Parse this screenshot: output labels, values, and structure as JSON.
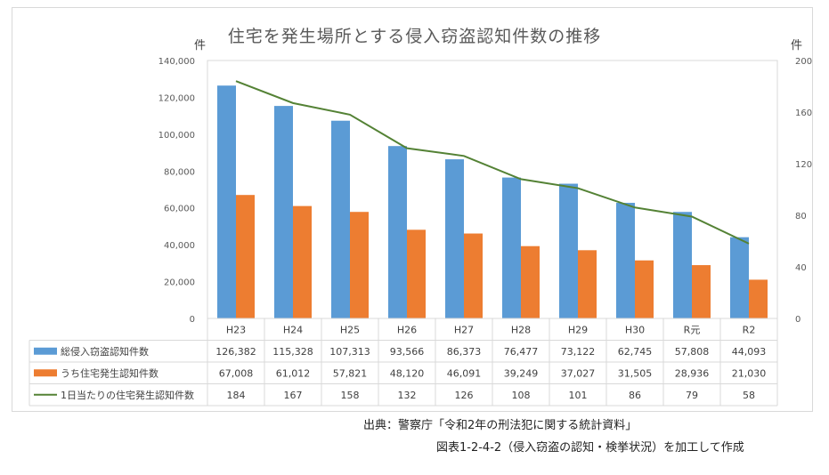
{
  "chart_data": {
    "type": "bar",
    "title": "住宅を発生場所とする侵入窃盗認知件数の推移",
    "ylabel": "件",
    "y2label": "件",
    "ylim": [
      0,
      140000
    ],
    "y2lim": [
      0,
      200
    ],
    "yticks": [
      "0",
      "20,000",
      "40,000",
      "60,000",
      "80,000",
      "100,000",
      "120,000",
      "140,000"
    ],
    "y2ticks": [
      "0",
      "40",
      "80",
      "120",
      "160",
      "200"
    ],
    "categories": [
      "H23",
      "H24",
      "H25",
      "H26",
      "H27",
      "H28",
      "H29",
      "H30",
      "R元",
      "R2"
    ],
    "series": [
      {
        "name": "総侵入窃盗認知件数",
        "type": "bar",
        "axis": "left",
        "color": "#5b9bd5",
        "values": [
          126382,
          115328,
          107313,
          93566,
          86373,
          76477,
          73122,
          62745,
          57808,
          44093
        ],
        "labels": [
          "126,382",
          "115,328",
          "107,313",
          "93,566",
          "86,373",
          "76,477",
          "73,122",
          "62,745",
          "57,808",
          "44,093"
        ]
      },
      {
        "name": "うち住宅発生認知件数",
        "type": "bar",
        "axis": "left",
        "color": "#ed7d31",
        "values": [
          67008,
          61012,
          57821,
          48120,
          46091,
          39249,
          37027,
          31505,
          28936,
          21030
        ],
        "labels": [
          "67,008",
          "61,012",
          "57,821",
          "48,120",
          "46,091",
          "39,249",
          "37,027",
          "31,505",
          "28,936",
          "21,030"
        ]
      },
      {
        "name": "1日当たりの住宅発生認知件数",
        "type": "line",
        "axis": "right",
        "color": "#548235",
        "values": [
          184,
          167,
          158,
          132,
          126,
          108,
          101,
          86,
          79,
          58
        ],
        "labels": [
          "184",
          "167",
          "158",
          "132",
          "126",
          "108",
          "101",
          "86",
          "79",
          "58"
        ]
      }
    ],
    "grid": false,
    "legend": "data-table"
  },
  "source": {
    "line1": "出典：警察庁「令和2年の刑法犯に関する統計資料」",
    "line2": "図表1-2-4-2（侵入窃盗の認知・検挙状況）を加工して作成"
  }
}
